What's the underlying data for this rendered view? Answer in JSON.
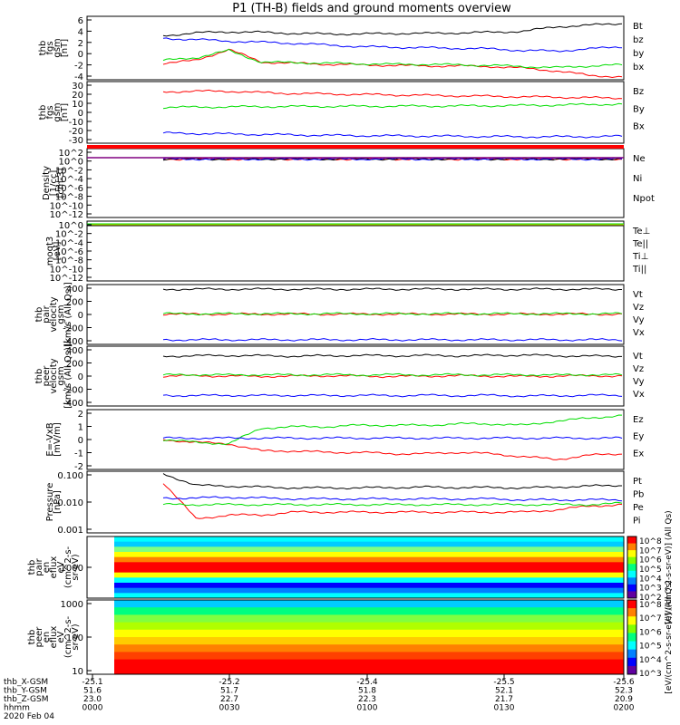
{
  "title": "P1 (TH-B) fields and ground moments overview",
  "colors": {
    "black": "#000000",
    "red": "#ff0000",
    "green": "#00dd00",
    "blue": "#0000ff",
    "yellow": "#e0e000",
    "purple": "#800080"
  },
  "chart_data": {
    "type": "line",
    "time_range": [
      "2020-02-04 00:00",
      "2020-02-04 02:00"
    ],
    "panels": [
      {
        "id": "fgs_gsm",
        "ylabel": [
          "thb",
          "fgs",
          "gsm",
          "[nT]"
        ],
        "yticks": [
          "6",
          "4",
          "2",
          "0",
          "-2",
          "-4"
        ],
        "ylim": [
          -5,
          6.5
        ],
        "series": [
          {
            "name": "Bt",
            "color": "black",
            "values": [
              3,
              3.5,
              3.7,
              3.6,
              3.4,
              3.3,
              3.3,
              3.4,
              3.4,
              3.5,
              3.6,
              3.8,
              4.6,
              4.9,
              5.2
            ]
          },
          {
            "name": "bz",
            "color": "red",
            "values": [
              -2,
              -1.5,
              0.5,
              -1.8,
              -2,
              -2.2,
              -2.3,
              -2.4,
              -2.5,
              -2.5,
              -2.6,
              -2.9,
              -3.4,
              -4.2,
              -4.5
            ]
          },
          {
            "name": "by",
            "color": "green",
            "values": [
              -1.5,
              -1,
              0.3,
              -1.8,
              -1.9,
              -2,
              -2.1,
              -2.2,
              -2.2,
              -2.3,
              -2.4,
              -2.6,
              -2.8,
              -2.5,
              -2.3
            ]
          },
          {
            "name": "bx",
            "color": "blue",
            "values": [
              2.5,
              2.3,
              2,
              1.8,
              1.6,
              1.3,
              1,
              0.9,
              0.8,
              0.7,
              0.6,
              0.3,
              0.2,
              0.6,
              1
            ]
          }
        ]
      },
      {
        "id": "fgs_gsm_large",
        "ylabel": [
          "thb",
          "fgs",
          "gsm",
          "[nT]"
        ],
        "yticks": [
          "30",
          "20",
          "10",
          "0",
          "-10",
          "-20",
          "-30"
        ],
        "ylim": [
          -35,
          32
        ],
        "series": [
          {
            "name": "Bz",
            "color": "red",
            "values": [
              21,
              21.5,
              21.5,
              20,
              19,
              18.5,
              18,
              17.5,
              17,
              16.5,
              16,
              15.5,
              15,
              14.5,
              14
            ]
          },
          {
            "name": "By",
            "color": "green",
            "values": [
              4,
              4.2,
              4.5,
              4.8,
              4.9,
              5,
              5.1,
              5.2,
              5.3,
              5.5,
              5.7,
              6,
              6.5,
              7,
              7.5
            ]
          },
          {
            "name": "Bx",
            "color": "blue",
            "values": [
              -24,
              -24.5,
              -25,
              -25.5,
              -26,
              -26.5,
              -26.8,
              -27,
              -27.2,
              -27.5,
              -27.8,
              -28,
              -28,
              -27.8,
              -27.5
            ]
          }
        ]
      },
      {
        "id": "density",
        "ylabel": [
          "Density",
          "[1/cc]",
          "[cm-3]"
        ],
        "yticks": [
          "10^2",
          "10^0",
          "10^-2",
          "10^-4",
          "10^-6",
          "10^-8",
          "10^-10",
          "10^-12"
        ],
        "log": true,
        "series": [
          {
            "name": "Ne",
            "color": "red",
            "values": [
              1,
              1,
              1,
              1,
              1,
              1,
              1,
              1,
              1,
              1,
              1,
              1,
              1,
              1,
              1
            ]
          },
          {
            "name": "Ni",
            "color": "black",
            "values": [
              1,
              1,
              1,
              1,
              1,
              1,
              1,
              1,
              1,
              1,
              1,
              1,
              1,
              1,
              1
            ]
          },
          {
            "name": "Npot",
            "color": "blue",
            "values": [
              1,
              1,
              1,
              1,
              1,
              1,
              1,
              1,
              1,
              1,
              1,
              1,
              1,
              1,
              1
            ]
          }
        ]
      },
      {
        "id": "temperature",
        "ylabel": [
          "moqt3",
          "[eV]"
        ],
        "yticks": [
          "10^0",
          "10^-2",
          "10^-4",
          "10^-6",
          "10^-8",
          "10^-10",
          "10^-12"
        ],
        "log": true,
        "series": [
          {
            "name": "Te⊥",
            "color": "red"
          },
          {
            "name": "Te||",
            "color": "black"
          },
          {
            "name": "Ti⊥",
            "color": "blue"
          },
          {
            "name": "Ti||",
            "color": "green"
          }
        ]
      },
      {
        "id": "pair_velocity",
        "ylabel": [
          "thb",
          "pair",
          "velocity",
          "gsm",
          "[km/s (All Qs)]"
        ],
        "yticks": [
          "400",
          "200",
          "0",
          "-200",
          "-400"
        ],
        "ylim": [
          -420,
          420
        ],
        "series": [
          {
            "name": "Vt",
            "color": "black",
            "values": [
              355,
              355,
              355,
              355,
              355,
              355,
              355,
              355,
              355,
              355,
              355,
              355,
              355,
              355,
              355
            ]
          },
          {
            "name": "Vz",
            "color": "red",
            "values": [
              5,
              5,
              5,
              5,
              5,
              5,
              5,
              5,
              5,
              5,
              5,
              5,
              5,
              5,
              5
            ]
          },
          {
            "name": "Vy",
            "color": "green",
            "values": [
              10,
              10,
              10,
              10,
              10,
              10,
              10,
              10,
              10,
              10,
              10,
              10,
              10,
              10,
              10
            ]
          },
          {
            "name": "Vx",
            "color": "blue",
            "values": [
              -355,
              -355,
              -355,
              -355,
              -355,
              -355,
              -355,
              -355,
              -355,
              -355,
              -355,
              -355,
              -355,
              -355,
              -355
            ]
          }
        ]
      },
      {
        "id": "peer_velocity",
        "ylabel": [
          "thb",
          "peer",
          "velocity",
          "gsm",
          "[km/s (All Qs)]"
        ],
        "yticks": [
          "400",
          "200",
          "0",
          "-200",
          "-400"
        ],
        "ylim": [
          -420,
          420
        ],
        "series": [
          {
            "name": "Vt",
            "color": "black",
            "values": [
              280,
              285,
              290,
              285,
              280,
              285,
              290,
              285,
              290,
              285,
              290,
              295,
              285,
              280,
              280
            ]
          },
          {
            "name": "Vz",
            "color": "red",
            "values": [
              0,
              5,
              0,
              -5,
              0,
              5,
              0,
              -5,
              0,
              5,
              0,
              -5,
              0,
              5,
              0
            ]
          },
          {
            "name": "Vy",
            "color": "green",
            "values": [
              15,
              20,
              15,
              20,
              15,
              20,
              15,
              20,
              15,
              20,
              15,
              20,
              15,
              20,
              15
            ]
          },
          {
            "name": "Vx",
            "color": "blue",
            "values": [
              -270,
              -275,
              -270,
              -275,
              -270,
              -275,
              -270,
              -275,
              -270,
              -275,
              -270,
              -280,
              -275,
              -270,
              -270
            ]
          }
        ]
      },
      {
        "id": "e_field",
        "ylabel": [
          "E=-VxB",
          "[mV/m]"
        ],
        "yticks": [
          "2",
          "1",
          "0",
          "-1",
          "-2"
        ],
        "ylim": [
          -2.1,
          2.1
        ],
        "series": [
          {
            "name": "Ez",
            "color": "red",
            "values": [
              0,
              -0.2,
              -0.3,
              -0.8,
              -0.8,
              -0.9,
              -0.9,
              -1,
              -1,
              -0.9,
              -1,
              -1.2,
              -1.4,
              -1.1,
              -1
            ]
          },
          {
            "name": "Ey",
            "color": "green",
            "values": [
              0,
              -0.2,
              -0.3,
              0.8,
              0.9,
              0.9,
              1,
              1,
              1,
              1.1,
              1.1,
              1,
              1.3,
              1.5,
              1.7
            ]
          },
          {
            "name": "Ex",
            "color": "blue",
            "values": [
              0.1,
              0.1,
              0.1,
              0.1,
              0.1,
              0.1,
              0.1,
              0.1,
              0.1,
              0.1,
              0.1,
              0.1,
              0.1,
              0.1,
              0.1
            ]
          }
        ]
      },
      {
        "id": "pressure",
        "ylabel": [
          "Pressure",
          "[nPa]"
        ],
        "yticks": [
          "0.100",
          "0.010",
          "0.001"
        ],
        "log": true,
        "series": [
          {
            "name": "Pt",
            "color": "black",
            "values": [
              0.1,
              0.04,
              0.038,
              0.035,
              0.033,
              0.033,
              0.033,
              0.034,
              0.035,
              0.034,
              0.034,
              0.033,
              0.035,
              0.038,
              0.04
            ]
          },
          {
            "name": "Pb",
            "color": "red",
            "values": [
              0.05,
              0.003,
              0.004,
              0.004,
              0.005,
              0.005,
              0.005,
              0.005,
              0.005,
              0.005,
              0.005,
              0.005,
              0.006,
              0.008,
              0.009
            ]
          },
          {
            "name": "Pe",
            "color": "green",
            "values": [
              0.009,
              0.009,
              0.009,
              0.009,
              0.009,
              0.009,
              0.009,
              0.009,
              0.009,
              0.009,
              0.009,
              0.009,
              0.009,
              0.009,
              0.01
            ]
          },
          {
            "name": "Pi",
            "color": "blue",
            "values": [
              0.015,
              0.015,
              0.016,
              0.015,
              0.014,
              0.014,
              0.014,
              0.014,
              0.014,
              0.014,
              0.014,
              0.013,
              0.013,
              0.013,
              0.013
            ]
          }
        ]
      },
      {
        "id": "pair_eflux",
        "ylabel": [
          "thb",
          "pair",
          "en",
          "eflux",
          "eV",
          "(cm^2-s-",
          "sr-eV)"
        ],
        "yticks": [
          "1000"
        ],
        "type": "heatmap",
        "colorbar_ticks": [
          "10^8",
          "10^7",
          "10^6",
          "10^5",
          "10^4",
          "10^3",
          "10^2"
        ],
        "colorbar_label": "[eV/(cm^2-s-sr-eV)] (All Qs)"
      },
      {
        "id": "peer_eflux",
        "ylabel": [
          "thb",
          "peer",
          "en",
          "eflux",
          "eV",
          "(cm^2-s-",
          "sr-eV)"
        ],
        "yticks": [
          "1000",
          "100",
          "10"
        ],
        "type": "heatmap",
        "colorbar_ticks": [
          "10^8",
          "10^7",
          "10^6",
          "10^5",
          "10^4",
          "10^3"
        ],
        "colorbar_label": "[eV/(cm^2-s-sr-eV)] (All Qs)"
      }
    ],
    "xaxis": {
      "rows": [
        {
          "label": "thb_X-GSM",
          "values": [
            "-25.1",
            "-25.2",
            "-25.4",
            "-25.5",
            "-25.6"
          ]
        },
        {
          "label": "thb_Y-GSM",
          "values": [
            "51.6",
            "51.7",
            "51.8",
            "52.1",
            "52.3"
          ]
        },
        {
          "label": "thb_Z-GSM",
          "values": [
            "23.0",
            "22.7",
            "22.3",
            "21.7",
            "20.9"
          ]
        },
        {
          "label": "hhmm",
          "values": [
            "0000",
            "0030",
            "0100",
            "0130",
            "0200"
          ]
        }
      ],
      "date": "2020 Feb 04"
    }
  }
}
